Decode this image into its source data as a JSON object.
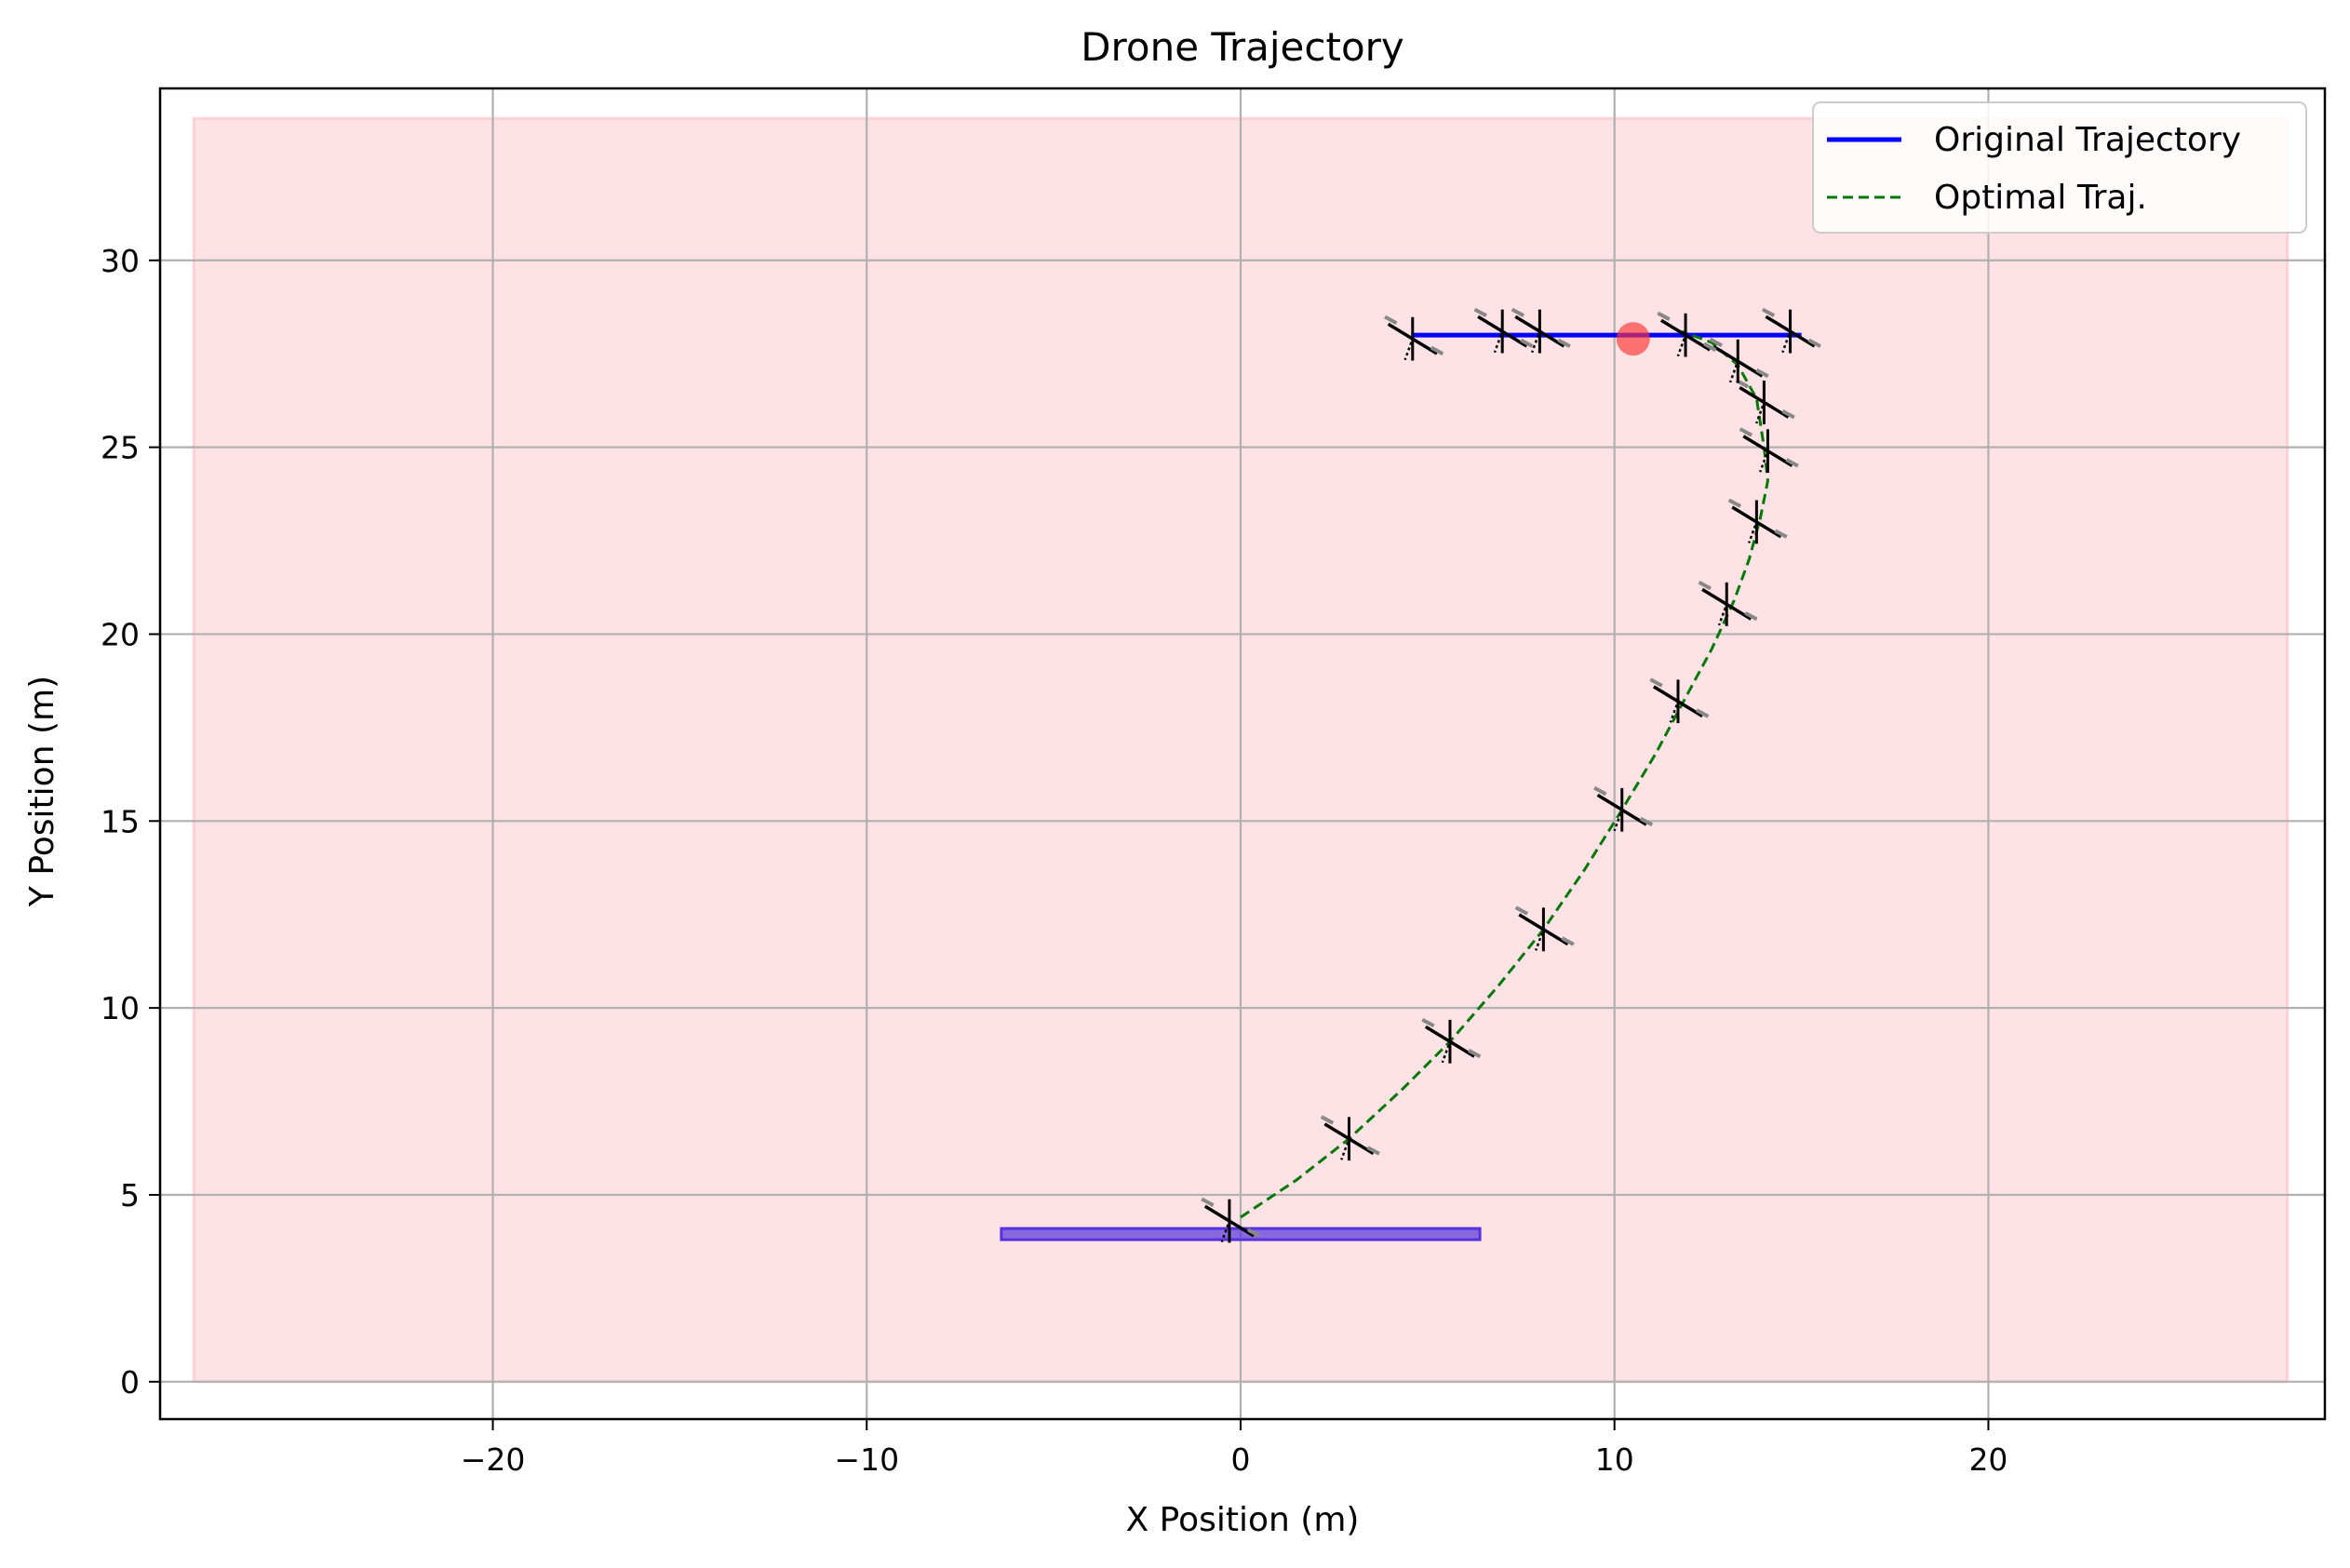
{
  "chart_data": {
    "type": "line",
    "title": "Drone Trajectory",
    "xlabel": "X Position (m)",
    "ylabel": "Y Position (m)",
    "xlim": [
      -28.9,
      29.0
    ],
    "ylim": [
      -1.0,
      34.6
    ],
    "xticks": [
      -20,
      -10,
      0,
      10,
      20
    ],
    "xtick_labels": [
      "−20",
      "−10",
      "0",
      "10",
      "20"
    ],
    "yticks": [
      0,
      5,
      10,
      15,
      20,
      25,
      30
    ],
    "ytick_labels": [
      "0",
      "5",
      "10",
      "15",
      "20",
      "25",
      "30"
    ],
    "grid": true,
    "legend_position": "top-right",
    "background_region": {
      "x": [
        -28,
        28
      ],
      "y": [
        0,
        33.8
      ],
      "color": "#ffb3ba"
    },
    "start_platform": {
      "x": [
        -6.4,
        6.4
      ],
      "y": 3.95,
      "color": "#5533dd"
    },
    "target_marker": {
      "x": 10.5,
      "y": 27.9,
      "color": "#ff3333"
    },
    "series": [
      {
        "name": "Original Trajectory",
        "color": "#0000ff",
        "style": "solid",
        "x": [
          4.6,
          15.0
        ],
        "y": [
          28.0,
          28.0
        ]
      },
      {
        "name": "Optimal Traj.",
        "color": "#007700",
        "style": "dashed",
        "x": [
          0.0,
          1.5,
          2.9,
          4.3,
          5.6,
          6.9,
          8.1,
          9.2,
          10.2,
          11.1,
          11.9,
          12.6,
          13.2,
          13.6,
          13.9,
          14.1,
          14.0,
          13.8,
          13.3,
          12.6,
          11.8
        ],
        "y": [
          4.4,
          5.4,
          6.5,
          7.8,
          9.1,
          10.6,
          12.1,
          13.7,
          15.3,
          16.8,
          18.3,
          19.6,
          20.9,
          22.0,
          23.1,
          24.1,
          25.0,
          26.3,
          27.2,
          27.8,
          28.1
        ]
      }
    ],
    "drone_positions": {
      "x": [
        -0.3,
        2.9,
        5.6,
        8.1,
        10.2,
        11.7,
        13.0,
        13.8,
        14.1,
        14.0,
        13.3,
        11.9,
        4.6,
        7.0,
        8.0,
        14.7
      ],
      "y": [
        4.3,
        6.5,
        9.1,
        12.1,
        15.3,
        18.2,
        20.8,
        23.0,
        24.9,
        26.2,
        27.3,
        28.0,
        27.9,
        28.1,
        28.1,
        28.1
      ]
    }
  }
}
